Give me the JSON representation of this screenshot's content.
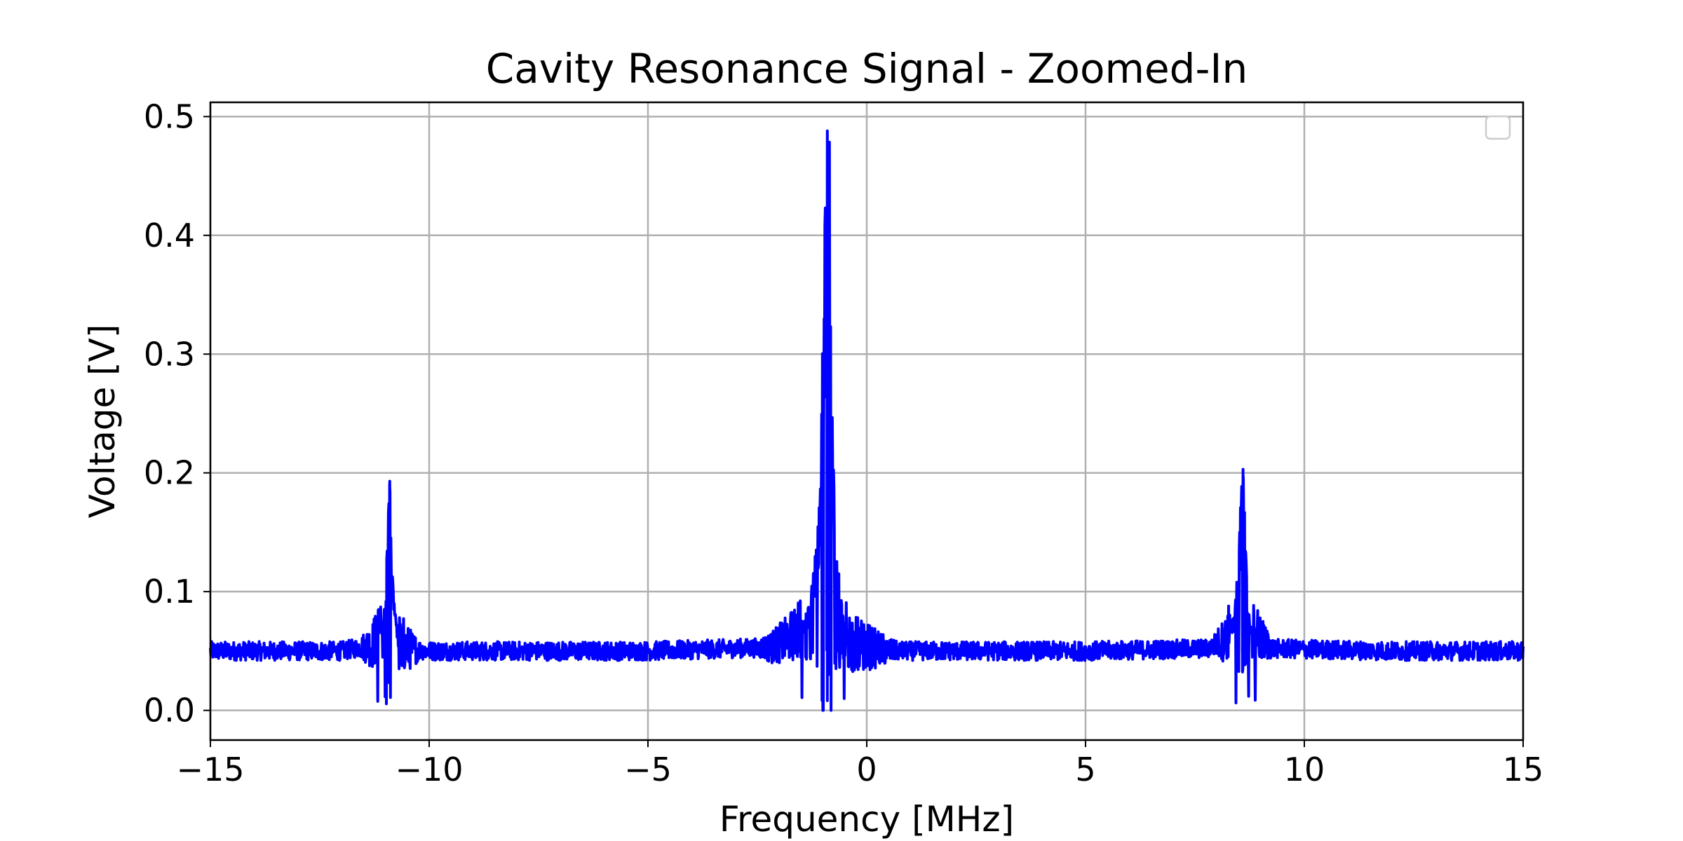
{
  "chart_data": {
    "type": "line",
    "title": "Cavity Resonance Signal - Zoomed-In",
    "xlabel": "Frequency [MHz]",
    "ylabel": "Voltage [V]",
    "xlim": [
      -15,
      15
    ],
    "ylim": [
      -0.025,
      0.512
    ],
    "x_ticks": [
      -15,
      -10,
      -5,
      0,
      5,
      10,
      15
    ],
    "x_tick_labels": [
      "−15",
      "−10",
      "−5",
      "0",
      "5",
      "10",
      "15"
    ],
    "y_ticks": [
      0.0,
      0.1,
      0.2,
      0.3,
      0.4,
      0.5
    ],
    "y_tick_labels": [
      "0.0",
      "0.1",
      "0.2",
      "0.3",
      "0.4",
      "0.5"
    ],
    "grid": true,
    "legend": "top-right",
    "series": [
      {
        "color": "#0000ff",
        "baseline": 0.05,
        "noise_amplitude": 0.008,
        "peaks": [
          {
            "x": -10.9,
            "y": 0.193
          },
          {
            "x": -0.9,
            "y": 0.488
          },
          {
            "x": 8.6,
            "y": 0.203
          }
        ],
        "x": [
          -15,
          -12,
          -11.3,
          -11.1,
          -11.0,
          -10.95,
          -10.9,
          -10.85,
          -10.8,
          -10.7,
          -10.5,
          -10.0,
          -5.0,
          -2.2,
          -1.8,
          -1.5,
          -1.3,
          -1.15,
          -1.05,
          -0.98,
          -0.93,
          -0.9,
          -0.87,
          -0.85,
          -0.82,
          -0.78,
          -0.72,
          -0.65,
          -0.55,
          -0.4,
          -0.2,
          0.5,
          5.0,
          7.8,
          8.2,
          8.4,
          8.5,
          8.55,
          8.6,
          8.65,
          8.7,
          8.8,
          9.0,
          9.3,
          12.0,
          15
        ],
        "y": [
          0.05,
          0.05,
          0.055,
          0.07,
          0.09,
          0.15,
          0.193,
          0.12,
          0.09,
          0.06,
          0.052,
          0.05,
          0.05,
          0.053,
          0.06,
          0.07,
          0.09,
          0.14,
          0.22,
          0.37,
          0.45,
          0.488,
          0.47,
          0.48,
          0.33,
          0.23,
          0.15,
          0.12,
          0.08,
          0.06,
          0.055,
          0.05,
          0.05,
          0.052,
          0.06,
          0.08,
          0.13,
          0.18,
          0.203,
          0.15,
          0.09,
          0.07,
          0.06,
          0.052,
          0.05,
          0.05
        ]
      }
    ]
  }
}
